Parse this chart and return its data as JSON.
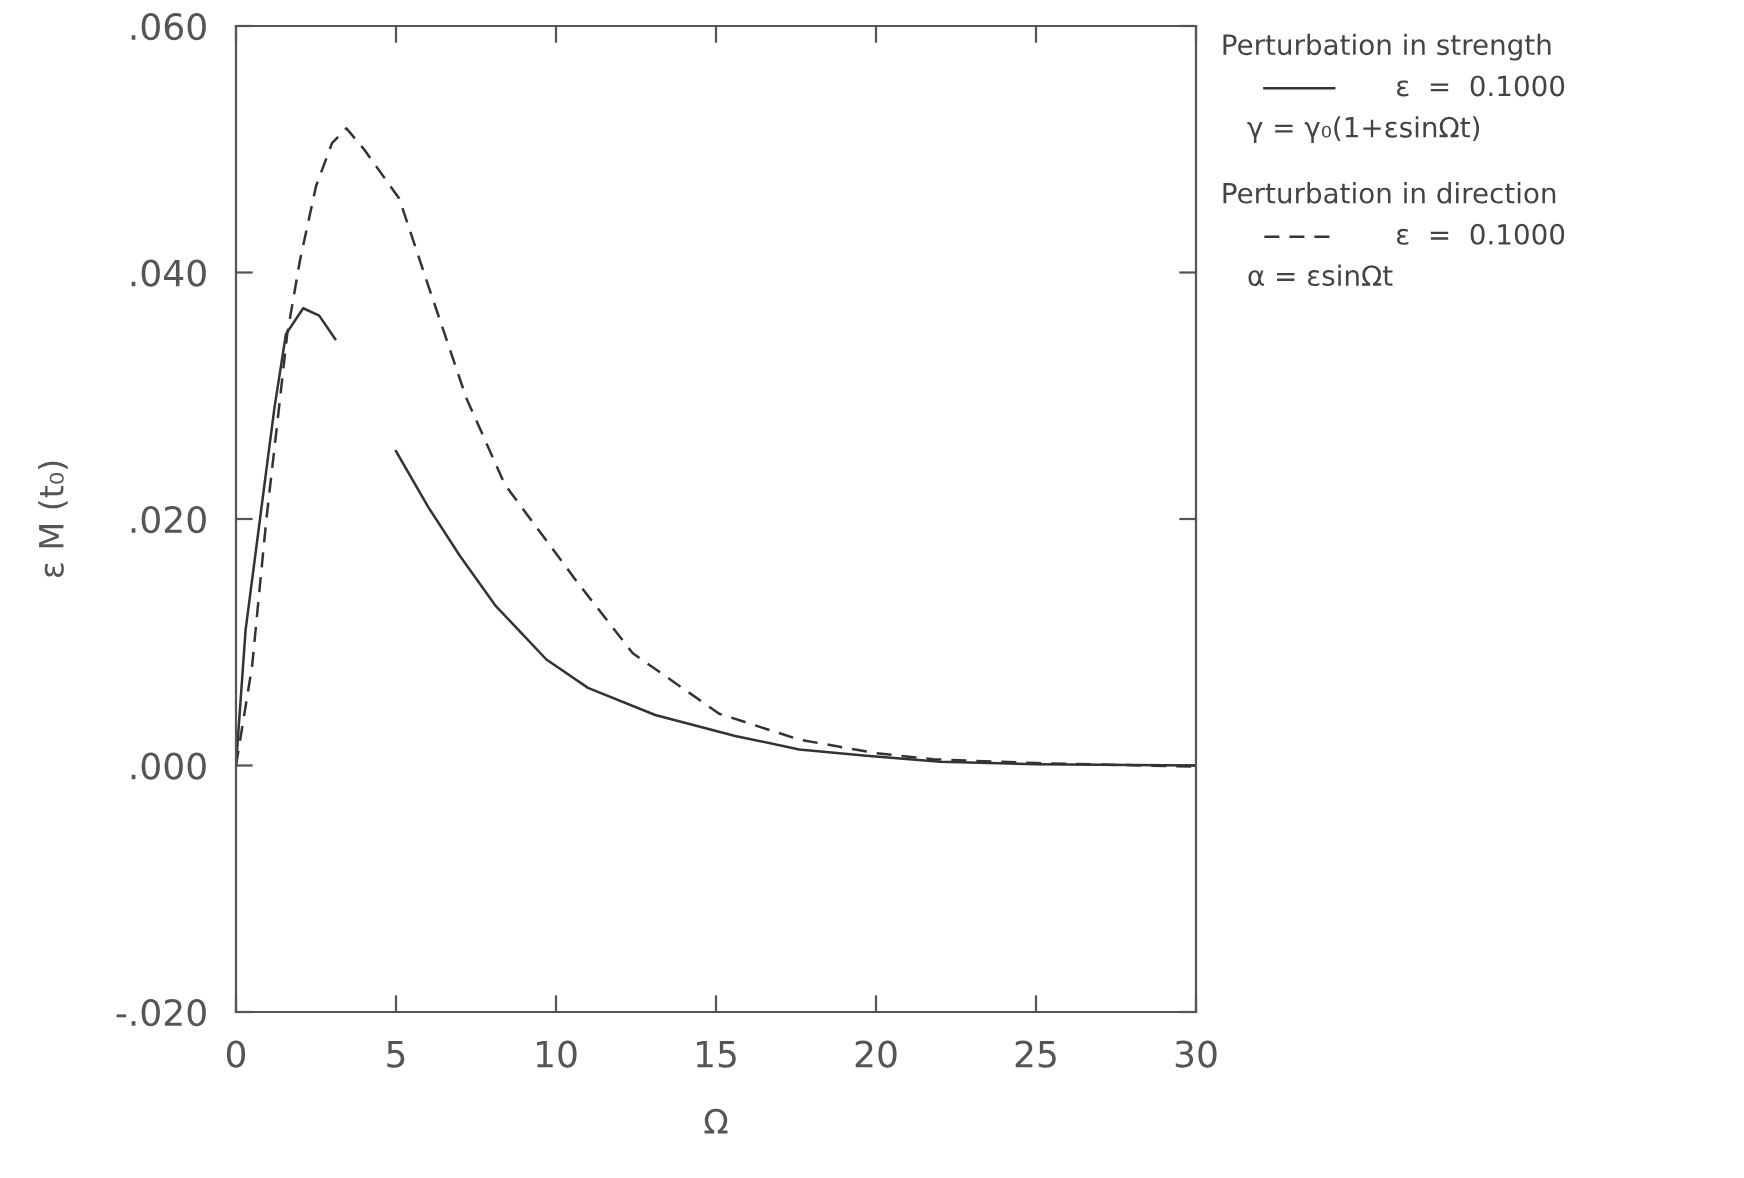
{
  "chart_data": {
    "type": "line",
    "xlabel": "Ω",
    "ylabel": "ε M (t₀)",
    "xlim": [
      0,
      30
    ],
    "ylim": [
      -0.02,
      0.06
    ],
    "xticks": [
      0,
      5,
      10,
      15,
      20,
      25,
      30
    ],
    "yticks": [
      {
        "value": -0.02,
        "label": "-.020"
      },
      {
        "value": 0,
        "label": ".000"
      },
      {
        "value": 0.02,
        "label": ".020"
      },
      {
        "value": 0.04,
        "label": ".040"
      },
      {
        "value": 0.06,
        "label": ".060"
      }
    ],
    "grid": false,
    "legend": "right",
    "marker": "none",
    "annotations": [
      "Perturbation in strength",
      "γ = γ₀(1+εsinΩt)",
      "Perturbation in direction",
      "α = εsinΩt"
    ],
    "series": [
      {
        "name": "ε  =  0.1000",
        "color": "#333333",
        "line_style": "solid",
        "x": [
          0,
          0.3,
          0.75,
          1.2,
          1.56,
          2.1,
          2.6,
          3.1,
          4,
          5,
          6,
          7,
          8.1,
          9.7,
          11,
          13.1,
          15.6,
          17.6,
          19.7,
          22,
          25,
          30
        ],
        "values": [
          0,
          0.011,
          0.02,
          0.029,
          0.035,
          0.0371,
          0.0365,
          0.0346,
          null,
          0.0255,
          0.021,
          0.017,
          0.013,
          0.0086,
          0.0063,
          0.0041,
          0.0024,
          0.0013,
          0.0008,
          0.0003,
          0.0001,
          0
        ]
      },
      {
        "name": "ε  =  0.1000",
        "color": "#333333",
        "line_style": "dashed",
        "x": [
          0,
          0.5,
          0.95,
          1.3,
          1.6,
          2,
          2.5,
          3,
          3.45,
          4,
          5.1,
          6,
          7.2,
          8.4,
          10.6,
          12.4,
          15.1,
          17.6,
          20,
          21.8,
          25,
          30
        ],
        "values": [
          0,
          0.008,
          0.02,
          0.028,
          0.035,
          0.041,
          0.047,
          0.0505,
          0.0517,
          0.05,
          0.046,
          0.039,
          0.0298,
          0.0228,
          0.0151,
          0.0091,
          0.0042,
          0.0021,
          0.001,
          0.0005,
          0.0002,
          -0.0001
        ]
      }
    ]
  }
}
